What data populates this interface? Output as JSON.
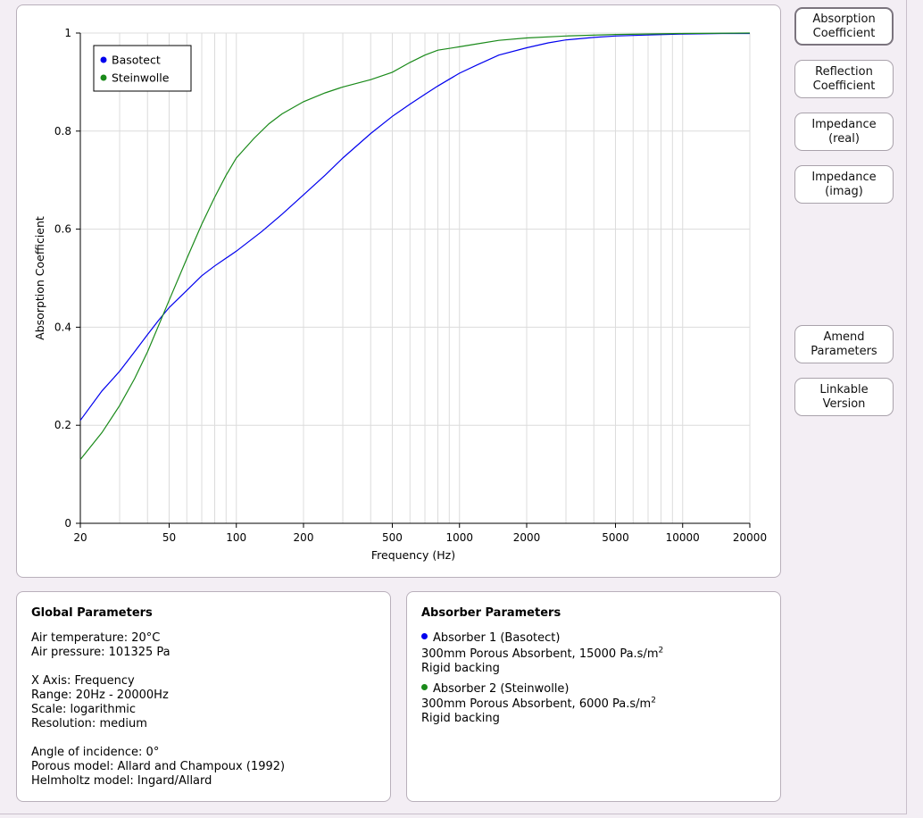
{
  "buttons": {
    "absorption": [
      "Absorption",
      "Coefficient"
    ],
    "reflection": [
      "Reflection",
      "Coefficient"
    ],
    "impedance_real": [
      "Impedance",
      "(real)"
    ],
    "impedance_imag": [
      "Impedance",
      "(imag)"
    ],
    "amend": [
      "Amend",
      "Parameters"
    ],
    "linkable": [
      "Linkable",
      "Version"
    ]
  },
  "global": {
    "title": "Global Parameters",
    "air_temperature": "Air temperature: 20°C",
    "air_pressure": "Air pressure: 101325 Pa",
    "x_axis": "X Axis: Frequency",
    "range": "Range: 20Hz - 20000Hz",
    "scale": "Scale: logarithmic",
    "resolution": "Resolution: medium",
    "angle": "Angle of incidence: 0°",
    "porous_model": "Porous model: Allard and Champoux (1992)",
    "helmholtz_model": "Helmholtz model: Ingard/Allard"
  },
  "absorbers": {
    "title": "Absorber Parameters",
    "items": [
      {
        "name": "Absorber 1 (Basotect)",
        "desc_main": "300mm Porous Absorbent, 15000 Pa.s/m",
        "desc_sup": "2",
        "backing": "Rigid backing",
        "color": "#0000ee"
      },
      {
        "name": "Absorber 2 (Steinwolle)",
        "desc_main": "300mm Porous Absorbent, 6000 Pa.s/m",
        "desc_sup": "2",
        "backing": "Rigid backing",
        "color": "#1a8a1a"
      }
    ]
  },
  "chart_data": {
    "type": "line",
    "xlabel": "Frequency (Hz)",
    "ylabel": "Absorption Coefficient",
    "x_scale": "log",
    "xlim": [
      20,
      20000
    ],
    "ylim": [
      0,
      1
    ],
    "x_ticks": [
      20,
      50,
      100,
      200,
      500,
      1000,
      2000,
      5000,
      10000,
      20000
    ],
    "x_tick_labels": [
      "20",
      "50",
      "100",
      "200",
      "500",
      "1000",
      "2000",
      "5000",
      "10000",
      "20000"
    ],
    "y_ticks": [
      0,
      0.2,
      0.4,
      0.6,
      0.8,
      1
    ],
    "y_tick_labels": [
      "0",
      "0.2",
      "0.4",
      "0.6",
      "0.8",
      "1"
    ],
    "grid": true,
    "legend_position": "top-left",
    "series": [
      {
        "name": "Basotect",
        "color": "#0000ee",
        "points": [
          [
            20,
            0.21
          ],
          [
            25,
            0.27
          ],
          [
            30,
            0.31
          ],
          [
            35,
            0.35
          ],
          [
            40,
            0.385
          ],
          [
            45,
            0.415
          ],
          [
            50,
            0.44
          ],
          [
            60,
            0.475
          ],
          [
            70,
            0.505
          ],
          [
            80,
            0.525
          ],
          [
            100,
            0.555
          ],
          [
            130,
            0.595
          ],
          [
            160,
            0.63
          ],
          [
            200,
            0.67
          ],
          [
            250,
            0.71
          ],
          [
            300,
            0.745
          ],
          [
            400,
            0.795
          ],
          [
            500,
            0.83
          ],
          [
            600,
            0.855
          ],
          [
            700,
            0.875
          ],
          [
            800,
            0.892
          ],
          [
            1000,
            0.918
          ],
          [
            1200,
            0.935
          ],
          [
            1500,
            0.955
          ],
          [
            2000,
            0.97
          ],
          [
            2500,
            0.98
          ],
          [
            3000,
            0.986
          ],
          [
            4000,
            0.991
          ],
          [
            5000,
            0.994
          ],
          [
            7000,
            0.996
          ],
          [
            10000,
            0.998
          ],
          [
            15000,
            0.999
          ],
          [
            20000,
            0.999
          ]
        ]
      },
      {
        "name": "Steinwolle",
        "color": "#1a8a1a",
        "points": [
          [
            20,
            0.13
          ],
          [
            25,
            0.185
          ],
          [
            30,
            0.24
          ],
          [
            35,
            0.295
          ],
          [
            40,
            0.35
          ],
          [
            45,
            0.405
          ],
          [
            50,
            0.455
          ],
          [
            60,
            0.54
          ],
          [
            70,
            0.61
          ],
          [
            80,
            0.665
          ],
          [
            90,
            0.71
          ],
          [
            100,
            0.745
          ],
          [
            120,
            0.785
          ],
          [
            140,
            0.815
          ],
          [
            160,
            0.835
          ],
          [
            200,
            0.86
          ],
          [
            250,
            0.878
          ],
          [
            300,
            0.89
          ],
          [
            400,
            0.905
          ],
          [
            500,
            0.92
          ],
          [
            600,
            0.94
          ],
          [
            700,
            0.955
          ],
          [
            800,
            0.965
          ],
          [
            1000,
            0.972
          ],
          [
            1200,
            0.978
          ],
          [
            1500,
            0.985
          ],
          [
            2000,
            0.99
          ],
          [
            3000,
            0.994
          ],
          [
            5000,
            0.997
          ],
          [
            10000,
            0.999
          ],
          [
            20000,
            1.0
          ]
        ]
      }
    ]
  }
}
